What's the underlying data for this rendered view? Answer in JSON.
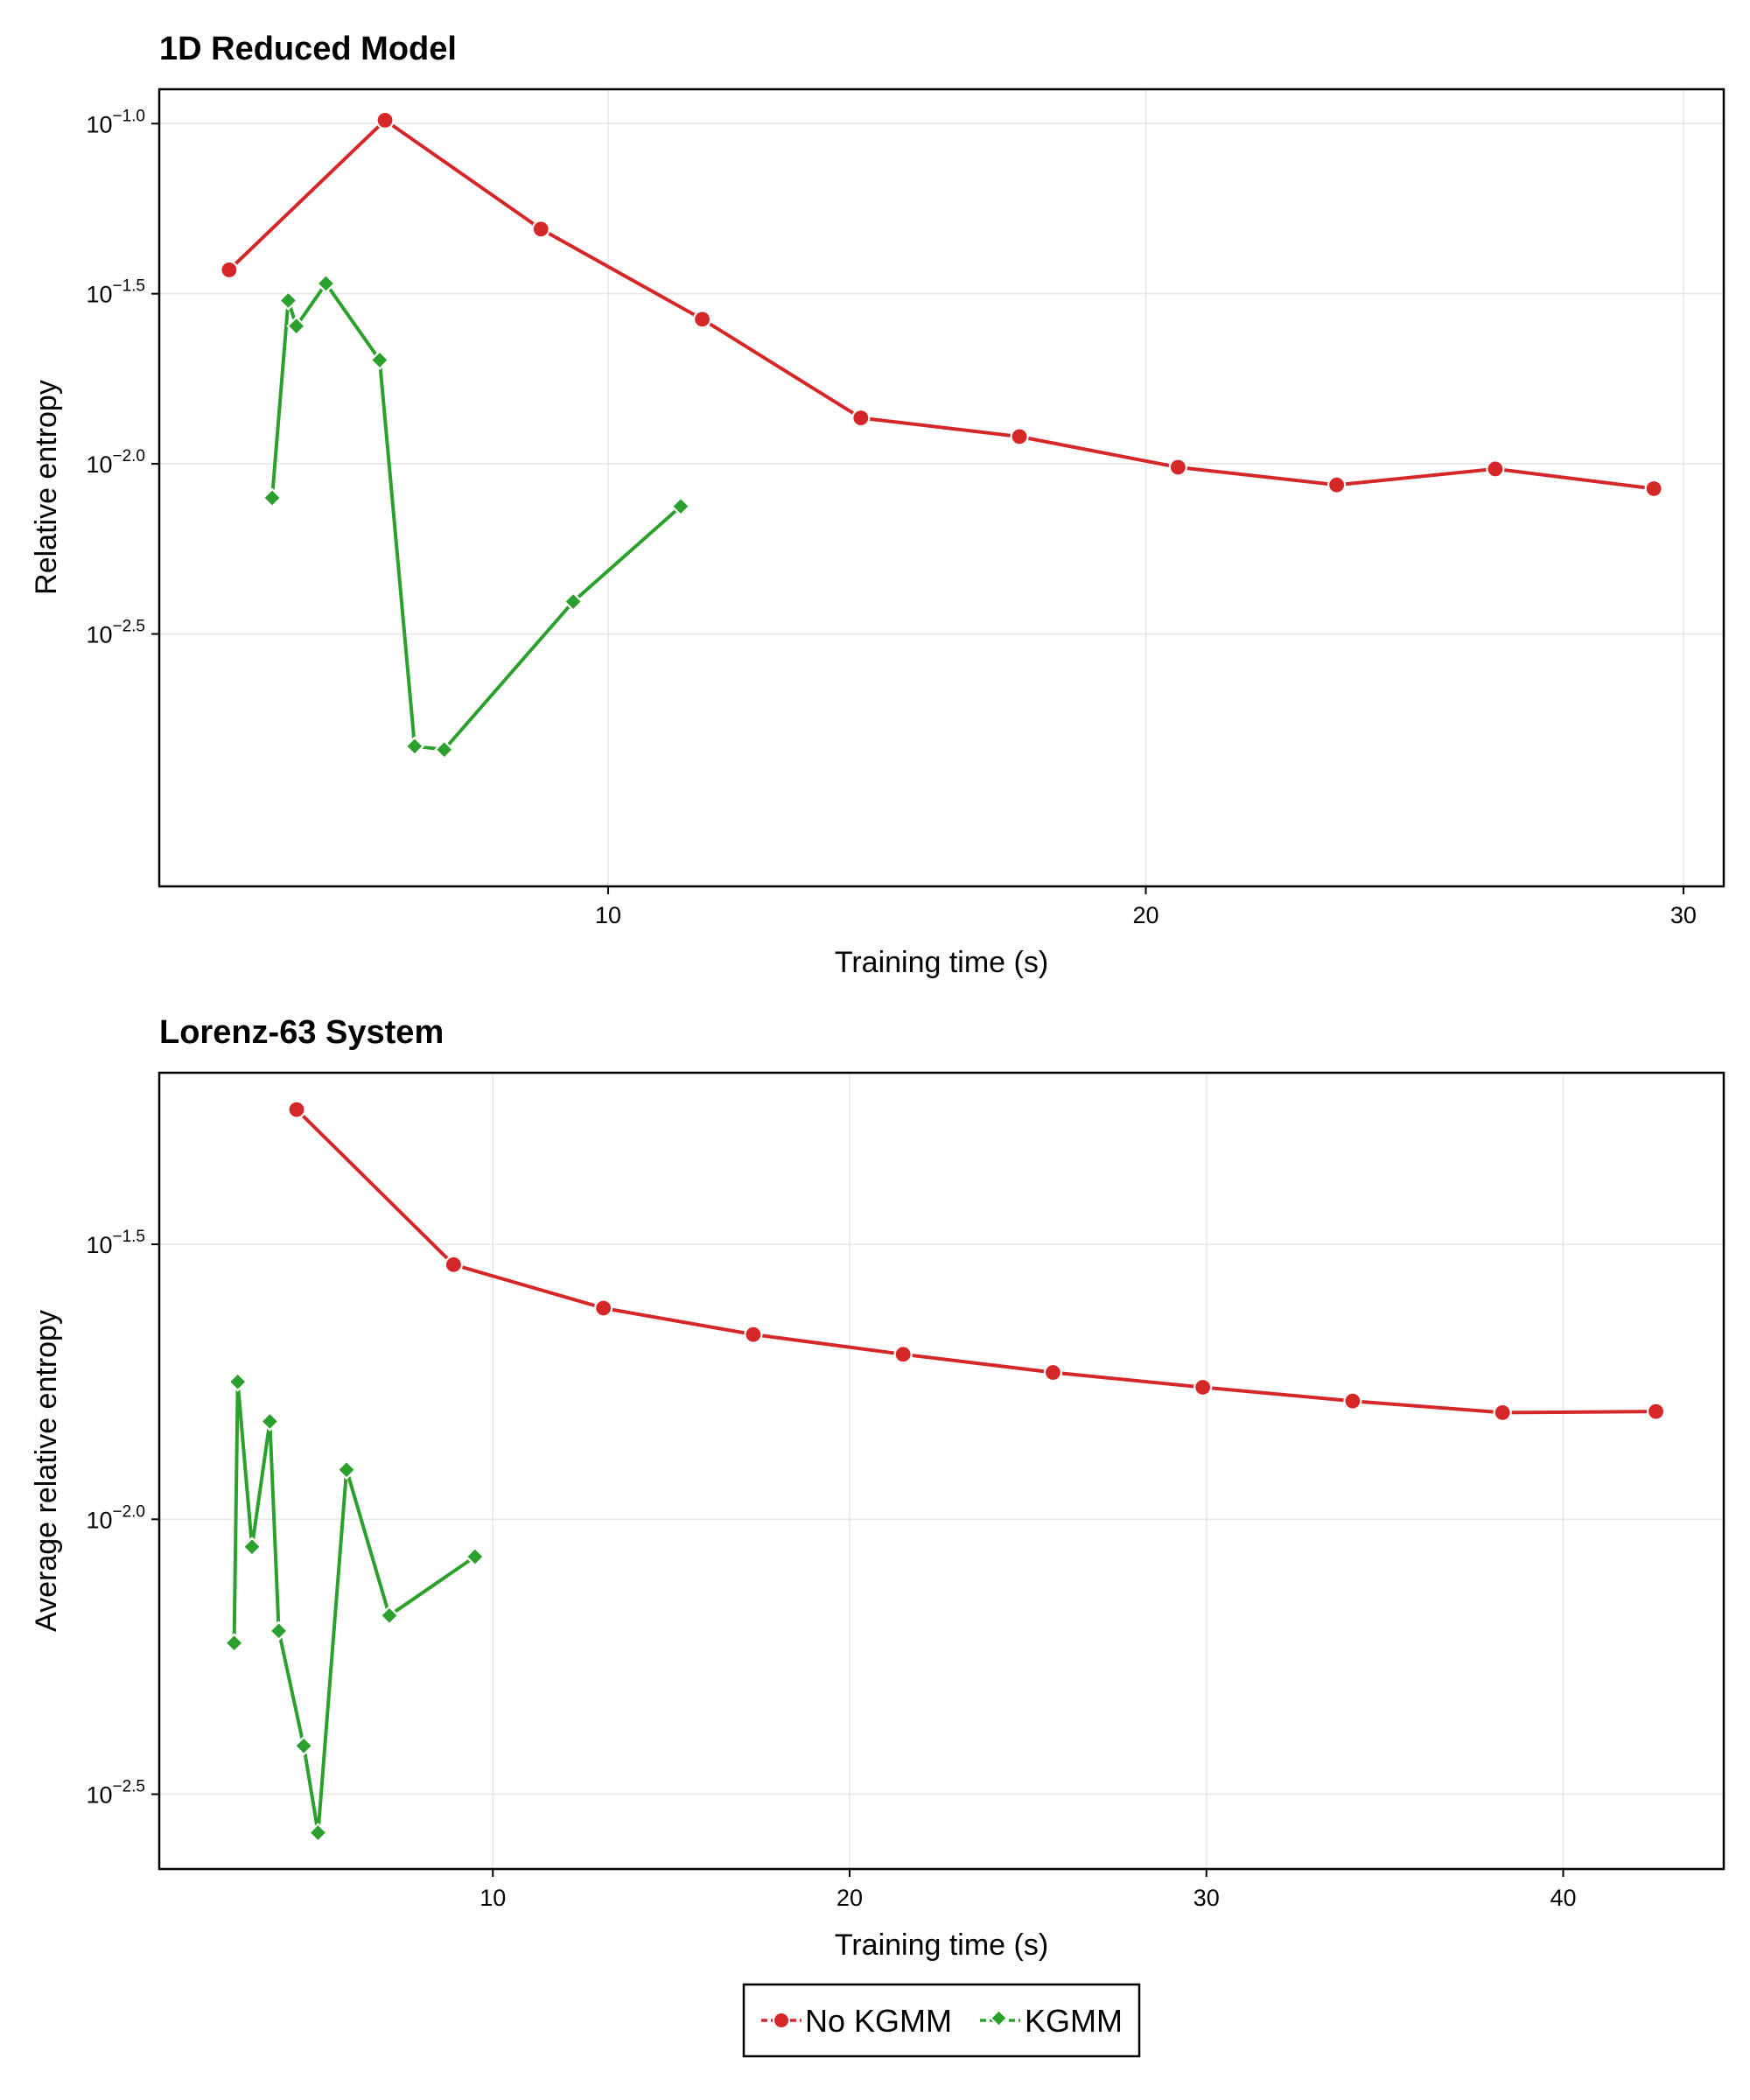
{
  "colors": {
    "no_kgmm": "#d62728",
    "kgmm": "#2ca02c"
  },
  "legend": [
    {
      "label": "No KGMM",
      "color": "#d62728",
      "marker": "circle"
    },
    {
      "label": "KGMM",
      "color": "#2ca02c",
      "marker": "diamond"
    }
  ],
  "chart_data": [
    {
      "type": "line",
      "title": "1D Reduced Model",
      "xlabel": "Training time (s)",
      "ylabel": "Relative entropy",
      "yscale": "log10",
      "xticks": [
        10,
        20,
        30
      ],
      "yticks": [
        {
          "exp": -1.0,
          "base": "10",
          "power": "−1.0"
        },
        {
          "exp": -1.5,
          "base": "10",
          "power": "−1.5"
        },
        {
          "exp": -2.0,
          "base": "10",
          "power": "−2.0"
        },
        {
          "exp": -2.5,
          "base": "10",
          "power": "−2.5"
        }
      ],
      "xlim": [
        1.65,
        30.75
      ],
      "ylim_log10": [
        -3.242,
        -0.899
      ],
      "grid": true,
      "series": [
        {
          "name": "No KGMM",
          "x": [
            2.95,
            5.85,
            8.75,
            11.75,
            14.7,
            17.65,
            20.6,
            23.55,
            26.5,
            29.45
          ],
          "log10_y": [
            -1.43,
            -0.99,
            -1.31,
            -1.575,
            -1.865,
            -1.92,
            -2.01,
            -2.062,
            -2.015,
            -2.073
          ]
        },
        {
          "name": "KGMM",
          "x": [
            3.75,
            4.05,
            4.2,
            4.75,
            5.75,
            6.4,
            6.95,
            9.35,
            11.35
          ],
          "log10_y": [
            -2.1,
            -1.52,
            -1.595,
            -1.47,
            -1.695,
            -2.83,
            -2.84,
            -2.405,
            -2.125
          ]
        }
      ]
    },
    {
      "type": "line",
      "title": "Lorenz-63 System",
      "xlabel": "Training time (s)",
      "ylabel": "Average relative entropy",
      "yscale": "log10",
      "xticks": [
        10,
        20,
        30,
        40
      ],
      "yticks": [
        {
          "exp": -1.5,
          "base": "10",
          "power": "−1.5"
        },
        {
          "exp": -2.0,
          "base": "10",
          "power": "−2.0"
        },
        {
          "exp": -2.5,
          "base": "10",
          "power": "−2.5"
        }
      ],
      "xlim": [
        0.65,
        44.5
      ],
      "ylim_log10": [
        -2.636,
        -1.188
      ],
      "grid": true,
      "series": [
        {
          "name": "No KGMM",
          "x": [
            4.5,
            8.9,
            13.1,
            17.3,
            21.5,
            25.7,
            29.9,
            34.1,
            38.3,
            42.6
          ],
          "log10_y": [
            -1.255,
            -1.537,
            -1.616,
            -1.664,
            -1.7,
            -1.733,
            -1.76,
            -1.785,
            -1.806,
            -1.804
          ]
        },
        {
          "name": "KGMM",
          "x": [
            2.75,
            2.85,
            3.25,
            3.75,
            4.0,
            4.7,
            5.1,
            5.9,
            7.1,
            9.5
          ],
          "log10_y": [
            -2.225,
            -1.75,
            -2.05,
            -1.822,
            -2.203,
            -2.412,
            -2.57,
            -1.91,
            -2.175,
            -2.068
          ]
        }
      ]
    }
  ]
}
